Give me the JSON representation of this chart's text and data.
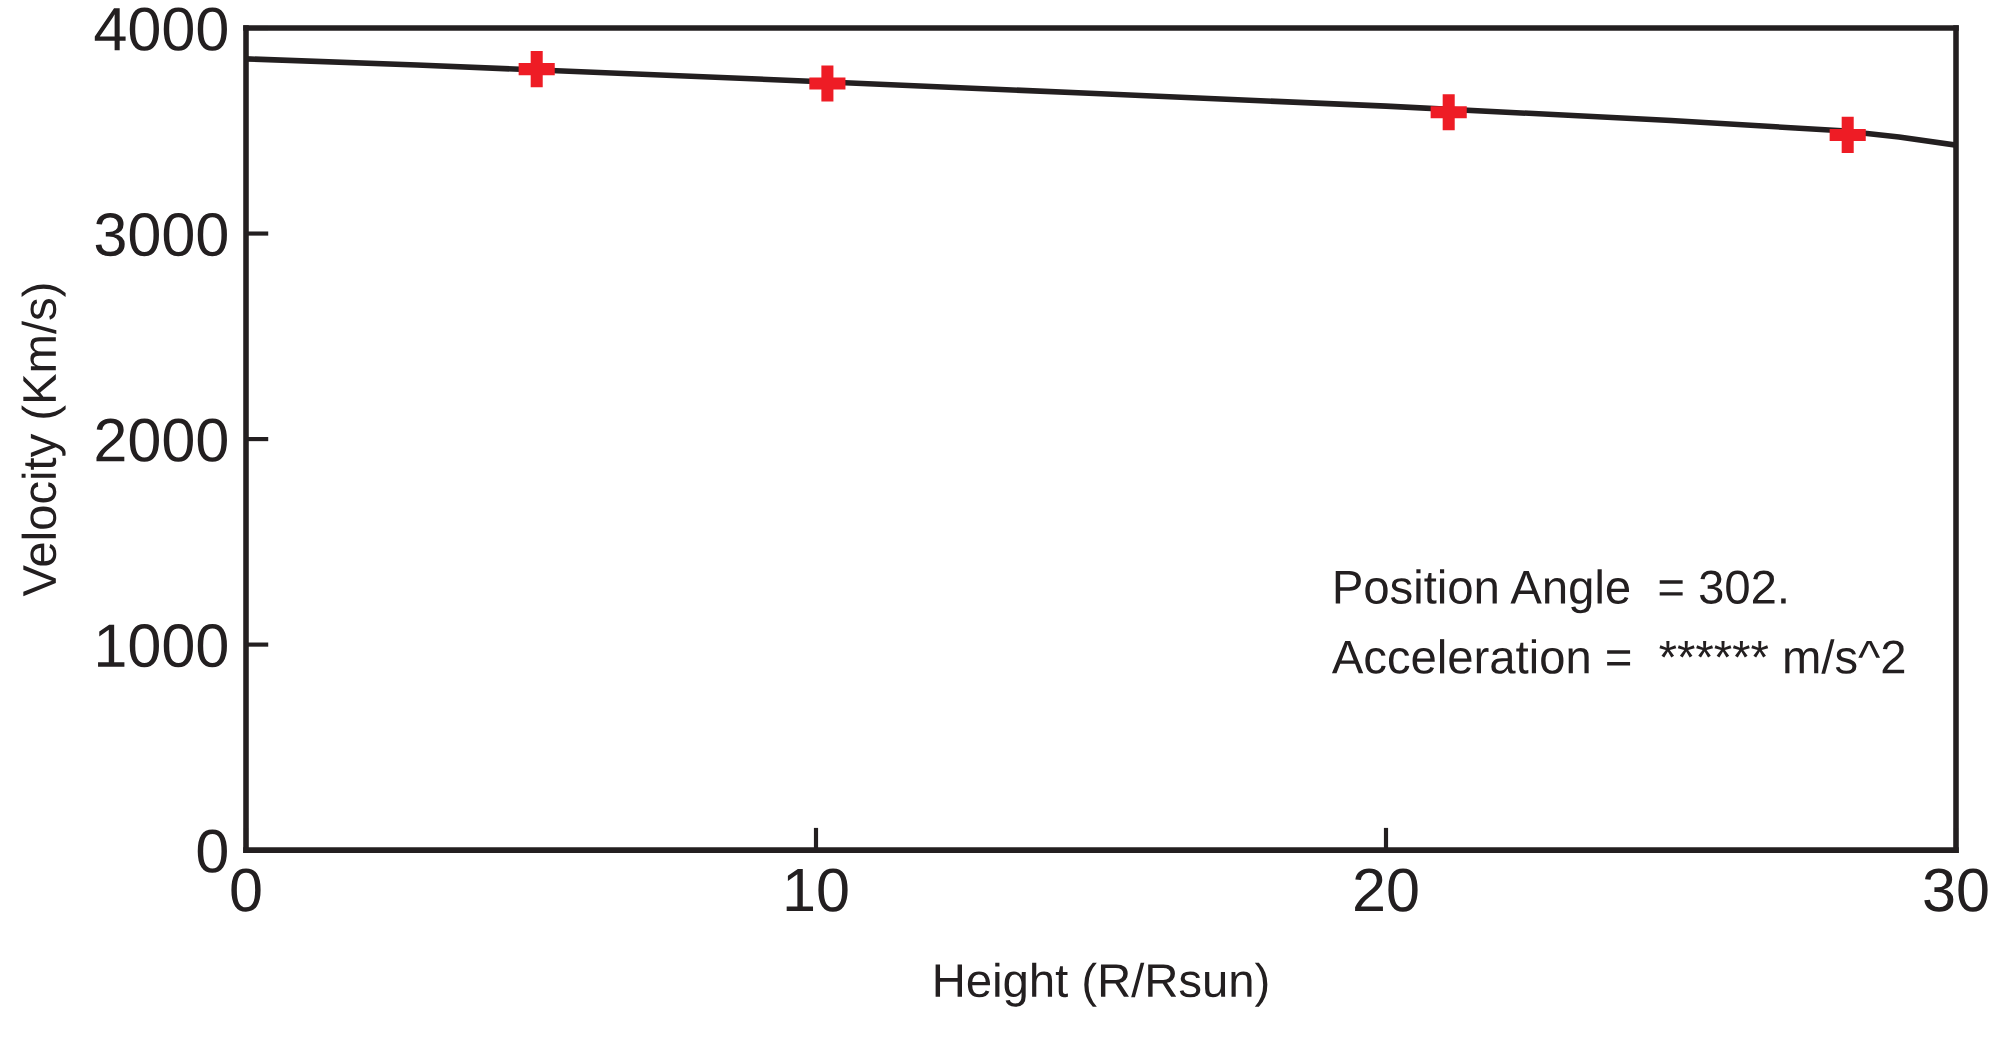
{
  "chart_data": {
    "type": "scatter",
    "xlabel": "Height (R/Rsun)",
    "ylabel": "Velocity (Km/s)",
    "xlim": [
      0,
      30
    ],
    "xticks": [
      0,
      10,
      20,
      30
    ],
    "ylim": [
      0,
      4000
    ],
    "yticks": [
      0,
      1000,
      2000,
      3000,
      4000
    ],
    "grid": false,
    "legend": false,
    "series": [
      {
        "color": "#ee1c25",
        "marker": "cross",
        "x": [
          5.1,
          10.2,
          21.1,
          28.1
        ],
        "values": [
          3800,
          3730,
          3590,
          3480
        ]
      },
      {
        "type": "line",
        "color": "#231f20",
        "marker": "none",
        "line_style": "solid",
        "x": [
          0,
          3,
          10,
          15,
          20,
          25,
          28,
          29,
          30
        ],
        "values": [
          3850,
          3820,
          3740,
          3680,
          3620,
          3550,
          3500,
          3470,
          3430
        ]
      }
    ],
    "annotations": [
      "Position Angle  = 302.",
      "Acceleration =  ****** m/s^2"
    ]
  }
}
